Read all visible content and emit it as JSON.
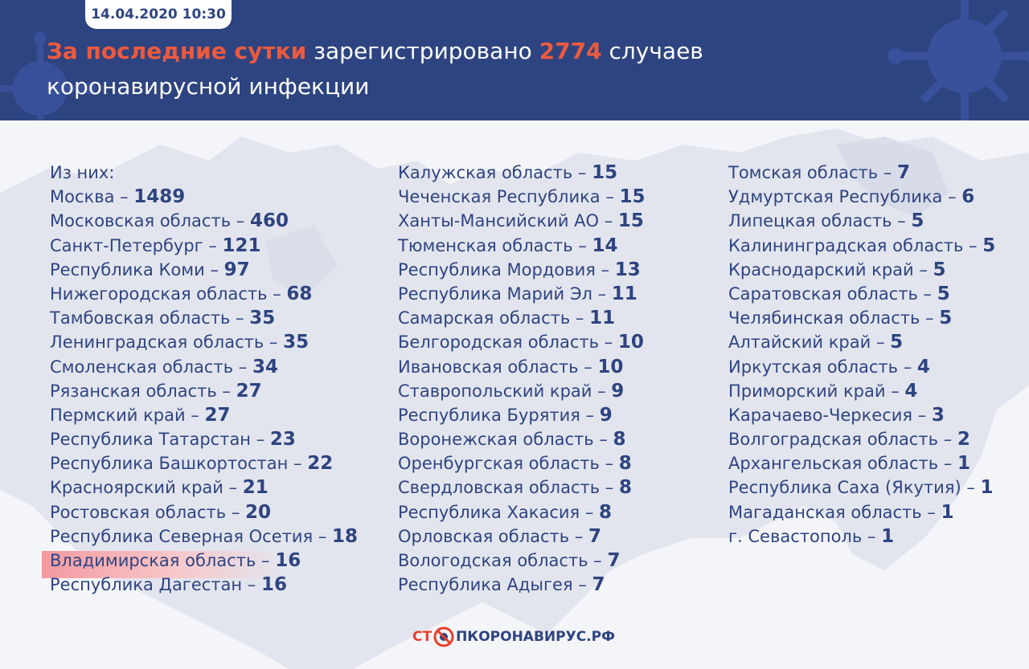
{
  "header": {
    "date": "14.04.2020 10:30",
    "headline_accent": "За последние сутки",
    "headline_mid": " зарегистрировано ",
    "headline_count": "2774",
    "headline_tail": " случаев",
    "headline_line2": "коронавирусной инфекции"
  },
  "colors": {
    "header_bg": "#2e4481",
    "accent": "#ec5a3e",
    "text": "#2e4481",
    "highlight": "#f39aa0"
  },
  "list": {
    "col1": [
      {
        "label": "Из них:",
        "num": ""
      },
      {
        "label": "Москва – ",
        "num": "1489"
      },
      {
        "label": "Московская область – ",
        "num": "460"
      },
      {
        "label": "Санкт-Петербург – ",
        "num": "121"
      },
      {
        "label": "Республика Коми – ",
        "num": "97"
      },
      {
        "label": "Нижегородская область – ",
        "num": "68"
      },
      {
        "label": "Тамбовская область – ",
        "num": "35"
      },
      {
        "label": "Ленинградская область – ",
        "num": "35"
      },
      {
        "label": "Смоленская область – ",
        "num": "34"
      },
      {
        "label": "Рязанская область – ",
        "num": "27"
      },
      {
        "label": "Пермский край – ",
        "num": "27"
      },
      {
        "label": "Республика Татарстан – ",
        "num": "23"
      },
      {
        "label": "Республика Башкортостан – ",
        "num": "22"
      },
      {
        "label": "Красноярский край – ",
        "num": "21"
      },
      {
        "label": "Ростовская область – ",
        "num": "20"
      },
      {
        "label": "Республика Северная Осетия – ",
        "num": "18"
      },
      {
        "label": "Владимирская область – ",
        "num": "16"
      },
      {
        "label": "Республика Дагестан – ",
        "num": "16"
      }
    ],
    "col2": [
      {
        "label": "Калужская область – ",
        "num": "15"
      },
      {
        "label": "Чеченская Республика – ",
        "num": "15"
      },
      {
        "label": "Ханты-Мансийский АО – ",
        "num": "15"
      },
      {
        "label": "Тюменская область – ",
        "num": "14"
      },
      {
        "label": "Республика Мордовия – ",
        "num": "13"
      },
      {
        "label": "Республика Марий Эл – ",
        "num": "11"
      },
      {
        "label": "Самарская область – ",
        "num": "11"
      },
      {
        "label": "Белгородская область – ",
        "num": "10"
      },
      {
        "label": "Ивановская область – ",
        "num": "10"
      },
      {
        "label": "Ставропольский край – ",
        "num": "9"
      },
      {
        "label": "Республика Бурятия – ",
        "num": "9"
      },
      {
        "label": "Воронежская область – ",
        "num": "8"
      },
      {
        "label": "Оренбургская область – ",
        "num": "8"
      },
      {
        "label": "Свердловская область – ",
        "num": "8"
      },
      {
        "label": "Республика Хакасия – ",
        "num": "8"
      },
      {
        "label": "Орловская область – ",
        "num": "7"
      },
      {
        "label": "Вологодская область – ",
        "num": "7"
      },
      {
        "label": "Республика Адыгея – ",
        "num": "7"
      }
    ],
    "col3": [
      {
        "label": "Томская область – ",
        "num": "7"
      },
      {
        "label": "Удмуртская Республика – ",
        "num": "6"
      },
      {
        "label": "Липецкая область – ",
        "num": "5"
      },
      {
        "label": "Калининградская область – ",
        "num": "5"
      },
      {
        "label": "Краснодарский край – ",
        "num": "5"
      },
      {
        "label": "Саратовская область – ",
        "num": "5"
      },
      {
        "label": "Челябинская область – ",
        "num": "5"
      },
      {
        "label": "Алтайский край – ",
        "num": "5"
      },
      {
        "label": "Иркутская область – ",
        "num": "4"
      },
      {
        "label": "Приморский край – ",
        "num": "4"
      },
      {
        "label": "Карачаево-Черкесия – ",
        "num": "3"
      },
      {
        "label": "Волгоградская область – ",
        "num": "2"
      },
      {
        "label": "Архангельская область – ",
        "num": "1"
      },
      {
        "label": "Республика Саха (Якутия) – ",
        "num": "1"
      },
      {
        "label": "Магаданская область – ",
        "num": "1"
      },
      {
        "label": "г. Севастополь – ",
        "num": "1"
      }
    ]
  },
  "footer": {
    "logo_left": "СТ",
    "logo_right": "ПКОРОНАВИРУС.РФ",
    "logo_icon": "virus-stop-icon"
  }
}
